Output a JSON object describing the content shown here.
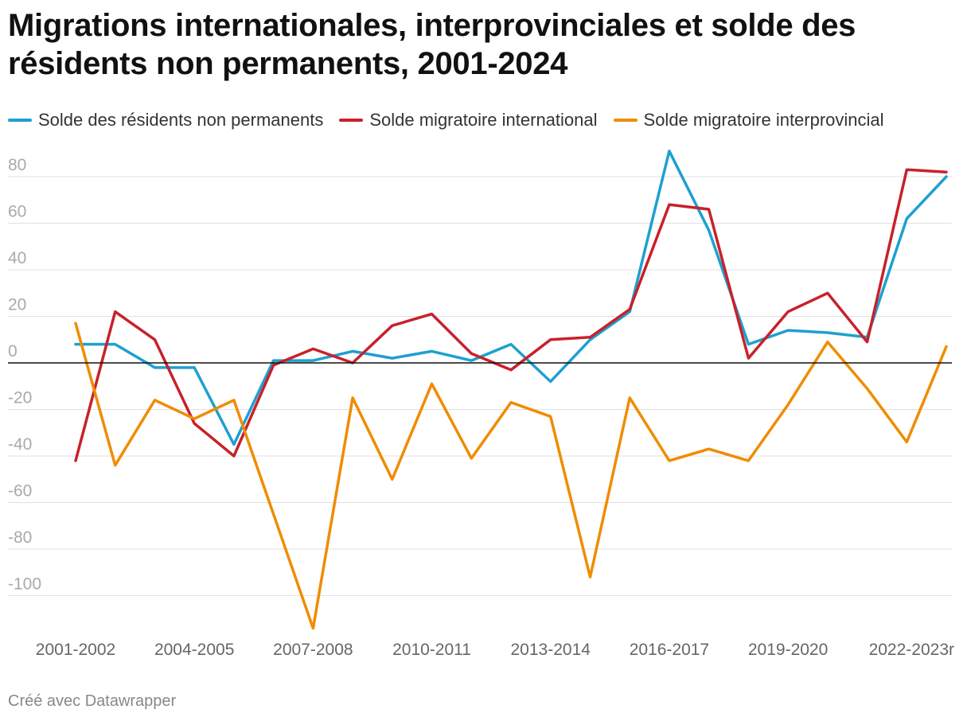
{
  "title": "Migrations internationales, interprovinciales et solde des résidents non permanents, 2001-2024",
  "footer": "Créé avec Datawrapper",
  "chart_data": {
    "type": "line",
    "title": "Migrations internationales, interprovinciales et solde des résidents non permanents, 2001-2024",
    "x": [
      "2001-2002",
      "2002-2003",
      "2003-2004",
      "2004-2005",
      "2005-2006",
      "2006-2007",
      "2007-2008",
      "2008-2009",
      "2009-2010",
      "2010-2011",
      "2011-2012",
      "2012-2013",
      "2013-2014",
      "2014-2015",
      "2015-2016",
      "2016-2017",
      "2017-2018",
      "2018-2019",
      "2019-2020",
      "2020-2021",
      "2021-2022",
      "2022-2023r",
      "2023-2024"
    ],
    "x_tick_labels": [
      "2001-2002",
      "2004-2005",
      "2007-2008",
      "2010-2011",
      "2013-2014",
      "2016-2017",
      "2019-2020",
      "2022-2023r"
    ],
    "y_ticks": [
      80,
      60,
      40,
      20,
      0,
      -20,
      -40,
      -60,
      -80,
      -100
    ],
    "y_tick_labels": [
      "80",
      "60",
      "40",
      "20",
      "0",
      "-20",
      "-40",
      "-60",
      "-80",
      "-100"
    ],
    "ylim": [
      -115,
      92
    ],
    "grid": true,
    "legend_position": "top-left",
    "series": [
      {
        "name": "Solde des résidents non permanents",
        "color": "#1ea0d1",
        "values": [
          8,
          8,
          -2,
          -2,
          -35,
          1,
          1,
          5,
          2,
          5,
          1,
          8,
          -8,
          10,
          22,
          91,
          57,
          8,
          14,
          13,
          11,
          62,
          80
        ]
      },
      {
        "name": "Solde migratoire international",
        "color": "#c8212a",
        "values": [
          -42,
          22,
          10,
          -26,
          -40,
          -1,
          6,
          0,
          16,
          21,
          4,
          -3,
          10,
          11,
          23,
          68,
          66,
          2,
          22,
          30,
          9,
          83,
          82
        ]
      },
      {
        "name": "Solde migratoire interprovincial",
        "color": "#f08c00",
        "values": [
          17,
          -44,
          -16,
          -24,
          -16,
          -65,
          -114,
          -15,
          -50,
          -9,
          -41,
          -17,
          -23,
          -92,
          -15,
          -42,
          -37,
          -42,
          -18,
          9,
          -11,
          -34,
          7
        ]
      }
    ]
  }
}
